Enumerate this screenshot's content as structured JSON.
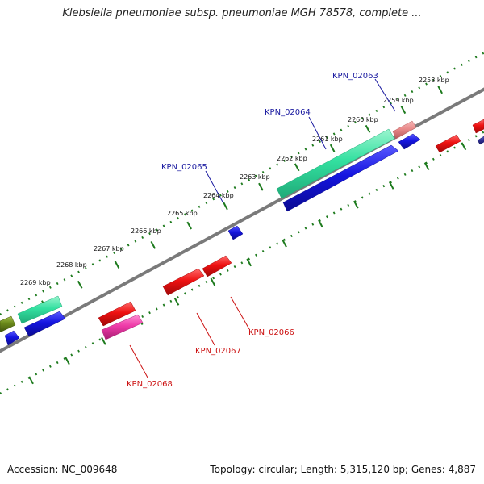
{
  "title": "Klebsiella pneumoniae subsp. pneumoniae MGH 78578, complete ...",
  "footer": {
    "accession": "Accession: NC_009648",
    "summary": "Topology: circular; Length: 5,315,120 bp; Genes: 4,887"
  },
  "colors": {
    "backbone": "#7a7a7a",
    "tick": "#1d7a1d",
    "label_plus": "#1a1aa0",
    "label_minus": "#cc1111"
  },
  "ticks": [
    "2258 kbp",
    "2259 kbp",
    "2260 kbp",
    "2261 kbp",
    "2262 kbp",
    "2263 kbp",
    "2264 kbp",
    "2265 kbp",
    "2266 kbp",
    "2267 kbp",
    "2268 kbp",
    "2269 kbp"
  ],
  "gene_labels": [
    {
      "text": "KPN_02063",
      "strand": "plus"
    },
    {
      "text": "KPN_02064",
      "strand": "plus"
    },
    {
      "text": "KPN_02065",
      "strand": "plus"
    },
    {
      "text": "KPN_02066",
      "strand": "minus"
    },
    {
      "text": "KPN_02067",
      "strand": "minus"
    },
    {
      "text": "KPN_02068",
      "strand": "minus"
    }
  ],
  "features": [
    {
      "name": "feature-salmon",
      "color": "#e98a8a"
    },
    {
      "name": "feature-cyan-long",
      "color": "#33e0a0"
    },
    {
      "name": "feature-blue-long",
      "color": "#1515e0"
    },
    {
      "name": "feature-blue-small-top",
      "color": "#1515e0"
    },
    {
      "name": "feature-blue-small-mid",
      "color": "#1515e0"
    },
    {
      "name": "feature-red-far-right",
      "color": "#ee1111"
    },
    {
      "name": "feature-red-edge",
      "color": "#ee1111"
    },
    {
      "name": "feature-red-1",
      "color": "#ee1111"
    },
    {
      "name": "feature-red-2",
      "color": "#ee1111"
    },
    {
      "name": "feature-red-3",
      "color": "#ee1111"
    },
    {
      "name": "feature-pink",
      "color": "#ee3aa8"
    },
    {
      "name": "feature-cyan-left",
      "color": "#33e0a0"
    },
    {
      "name": "feature-blue-left",
      "color": "#1515e0"
    },
    {
      "name": "feature-olive",
      "color": "#6b8a1a"
    },
    {
      "name": "feature-blue-small-left",
      "color": "#1515e0"
    },
    {
      "name": "feature-navy-edge",
      "color": "#333399"
    }
  ]
}
